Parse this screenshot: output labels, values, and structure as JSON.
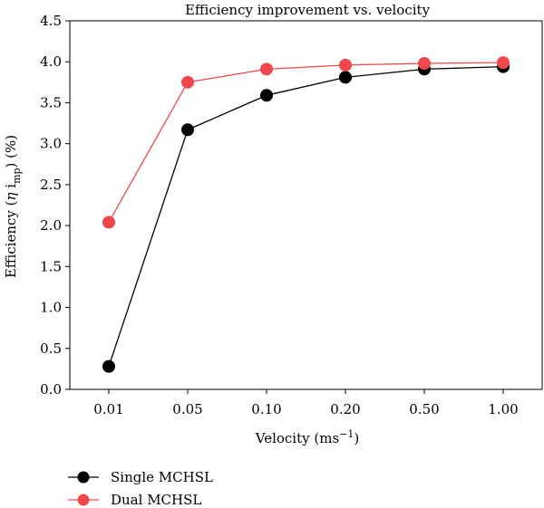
{
  "chart_data": {
    "type": "line",
    "title": "Efficiency improvement vs. velocity",
    "xlabel_main": "Velocity (ms",
    "xlabel_sup": "−1",
    "xlabel_end": ")",
    "ylabel_main": "Efficiency (",
    "ylabel_eta": "η",
    "ylabel_i": " i",
    "ylabel_sub": "mp",
    "ylabel_end": ") (%)",
    "categories": [
      "0.01",
      "0.05",
      "0.10",
      "0.20",
      "0.50",
      "1.00"
    ],
    "yticks": [
      "0.0",
      "0.5",
      "1.0",
      "1.5",
      "2.0",
      "2.5",
      "3.0",
      "3.5",
      "4.0",
      "4.5"
    ],
    "ylim": [
      0,
      4.5
    ],
    "legend_position": "bottom-left",
    "series": [
      {
        "name": "Single MCHSL",
        "color": "#000000",
        "values": [
          0.28,
          3.17,
          3.59,
          3.81,
          3.91,
          3.94
        ]
      },
      {
        "name": "Dual MCHSL",
        "color": "#f0474b",
        "values": [
          2.04,
          3.75,
          3.91,
          3.96,
          3.98,
          3.99
        ]
      }
    ]
  }
}
